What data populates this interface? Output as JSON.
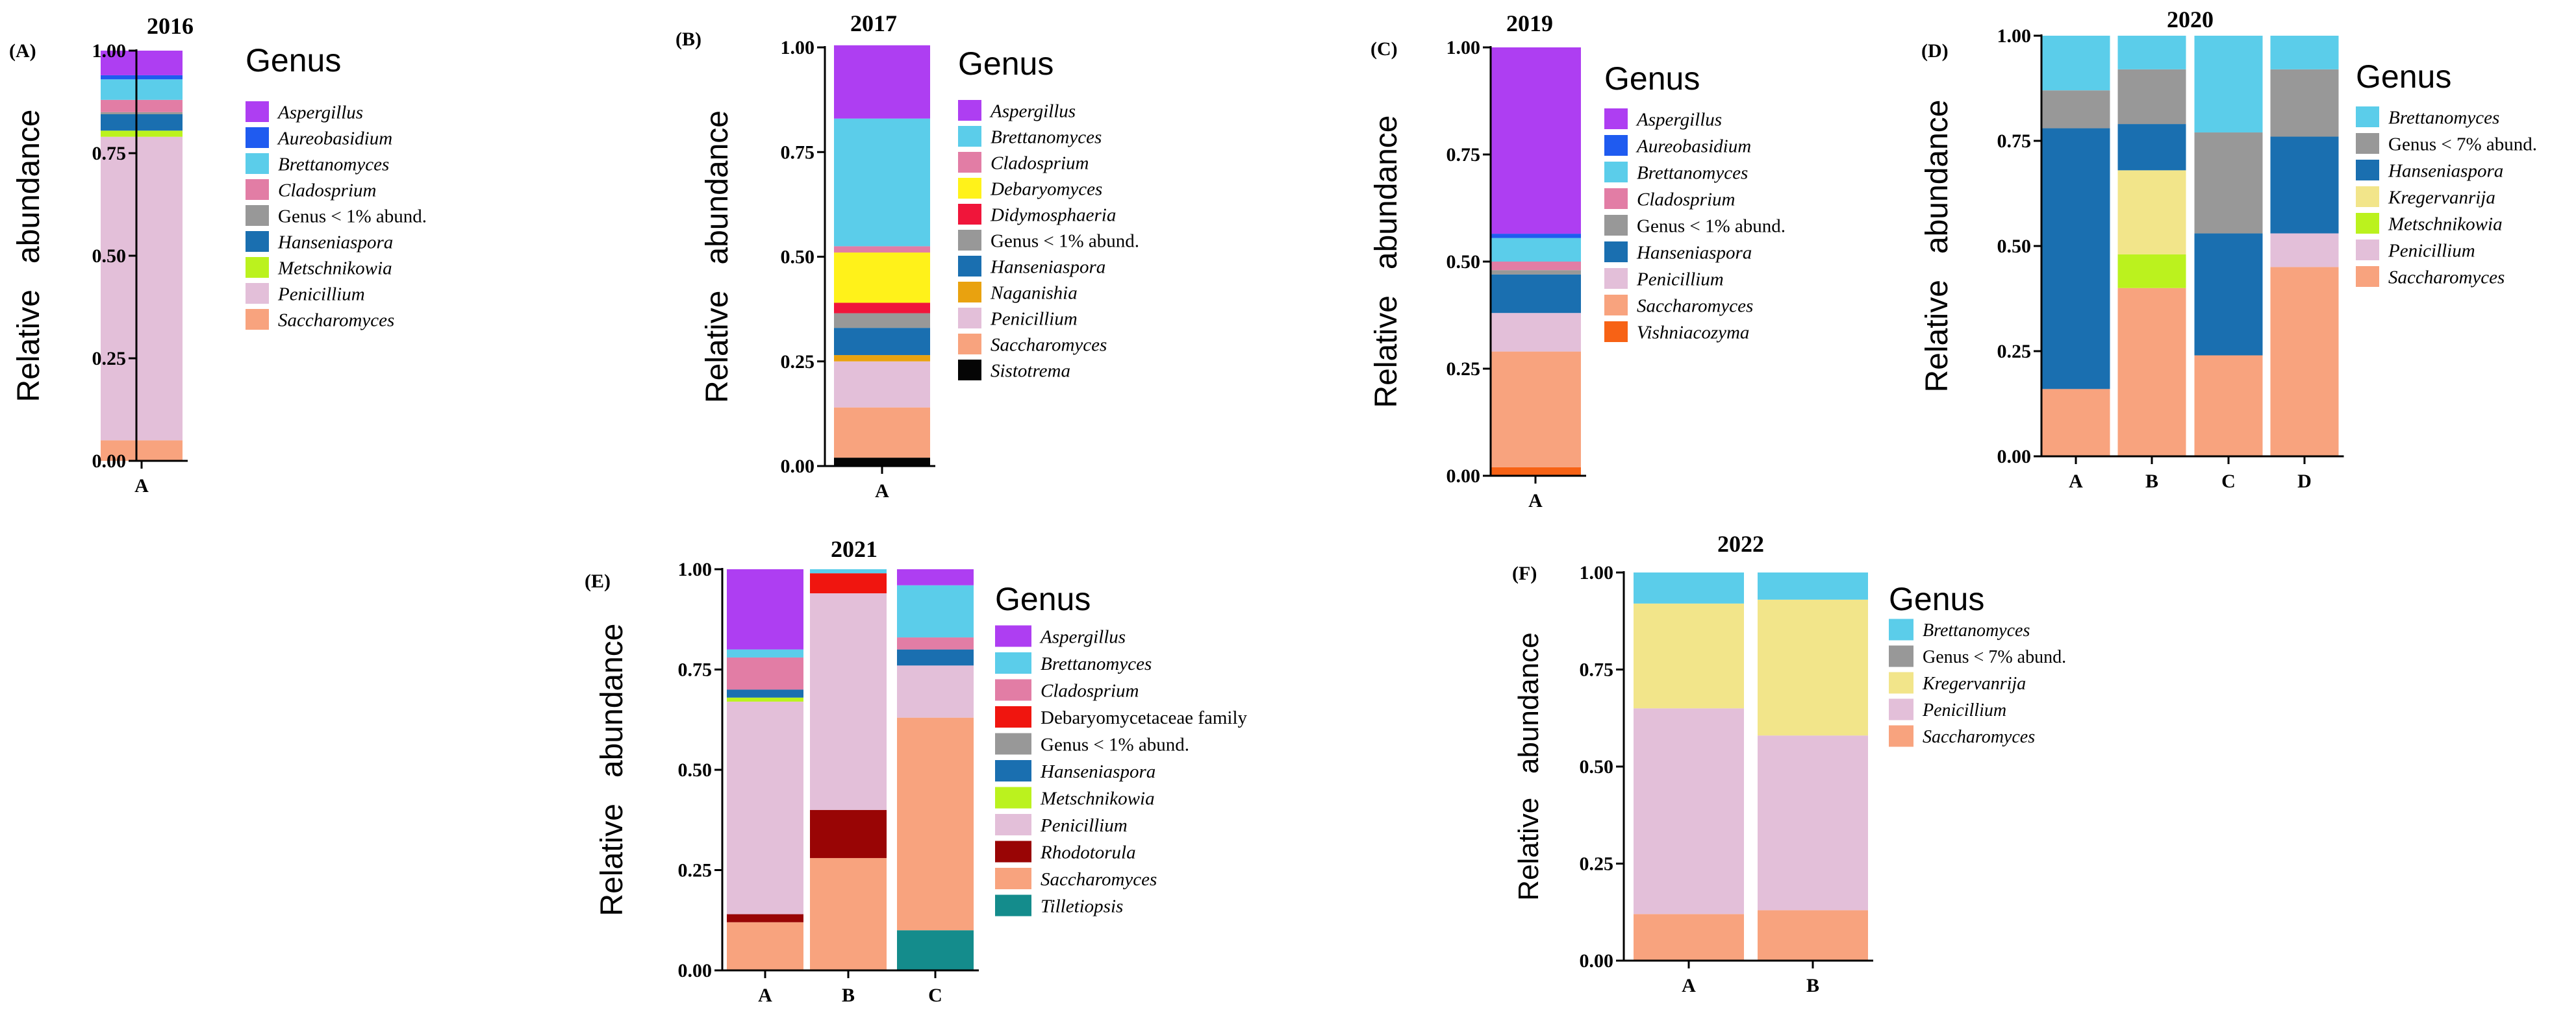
{
  "colors": {
    "Aspergillus": "#AE3EF2",
    "Aureobasidium": "#1F5BF0",
    "Brettanomyces": "#5BCDEA",
    "Cladosprium": "#E27DA5",
    "Debaryomyces": "#FFF21A",
    "Didymosphaeria": "#F0153A",
    "Genus < 1% abund.": "#989898",
    "Genus < 7% abund.": "#989898",
    "Hanseniaspora": "#1A6FB0",
    "Metschnikowia": "#BBF21E",
    "Naganishia": "#E9A20F",
    "Penicillium": "#E3BFD9",
    "Saccharomyces": "#F8A37E",
    "Sistotrema": "#050505",
    "Vishniacozyma": "#F76215",
    "Kregervanrija": "#F2E58A",
    "Debaryomycetaceae family": "#F0150F",
    "Rhodotorula": "#990505",
    "Tilletiopsis": "#148C8C"
  },
  "chart_data": [
    {
      "type": "bar",
      "panel": "(A)",
      "title": "2016",
      "ylabel": "Relative   abundance",
      "ylim": [
        0,
        1
      ],
      "yticks": [
        "0.00",
        "0.25",
        "0.50",
        "0.75",
        "1.00"
      ],
      "legend_title": "Genus",
      "legend_items": [
        {
          "name": "Aspergillus",
          "label": "Aspergillus",
          "italic": true
        },
        {
          "name": "Aureobasidium",
          "label": "Aureobasidium",
          "italic": true
        },
        {
          "name": "Brettanomyces",
          "label": "Brettanomyces",
          "italic": true
        },
        {
          "name": "Cladosprium",
          "label": "Cladosprium",
          "italic": true
        },
        {
          "name": "Genus < 1% abund.",
          "label": "Genus < 1% abund.",
          "italic": false
        },
        {
          "name": "Hanseniaspora",
          "label": "Hanseniaspora",
          "italic": true
        },
        {
          "name": "Metschnikowia",
          "label": "Metschnikowia",
          "italic": true
        },
        {
          "name": "Penicillium",
          "label": "Penicillium",
          "italic": true
        },
        {
          "name": "Saccharomyces",
          "label": "Saccharomyces",
          "italic": true
        }
      ],
      "stack_order": [
        "Saccharomyces",
        "Penicillium",
        "Metschnikowia",
        "Hanseniaspora",
        "Genus < 1% abund.",
        "Cladosprium",
        "Brettanomyces",
        "Aureobasidium",
        "Aspergillus"
      ],
      "categories": [
        "A"
      ],
      "series": [
        {
          "name": "Saccharomyces",
          "values": [
            0.05
          ]
        },
        {
          "name": "Penicillium",
          "values": [
            0.74
          ]
        },
        {
          "name": "Metschnikowia",
          "values": [
            0.015
          ]
        },
        {
          "name": "Hanseniaspora",
          "values": [
            0.04
          ]
        },
        {
          "name": "Genus < 1% abund.",
          "values": [
            0.005
          ]
        },
        {
          "name": "Cladosprium",
          "values": [
            0.03
          ]
        },
        {
          "name": "Brettanomyces",
          "values": [
            0.05
          ]
        },
        {
          "name": "Aureobasidium",
          "values": [
            0.01
          ]
        },
        {
          "name": "Aspergillus",
          "values": [
            0.06
          ]
        }
      ]
    },
    {
      "type": "bar",
      "panel": "(B)",
      "title": "2017",
      "ylabel": "Relative   abundance",
      "ylim": [
        0,
        1
      ],
      "yticks": [
        "0.00",
        "0.25",
        "0.50",
        "0.75",
        "1.00"
      ],
      "legend_title": "Genus",
      "legend_items": [
        {
          "name": "Aspergillus",
          "label": "Aspergillus",
          "italic": true
        },
        {
          "name": "Brettanomyces",
          "label": "Brettanomyces",
          "italic": true
        },
        {
          "name": "Cladosprium",
          "label": "Cladosprium",
          "italic": true
        },
        {
          "name": "Debaryomyces",
          "label": "Debaryomyces",
          "italic": true
        },
        {
          "name": "Didymosphaeria",
          "label": "Didymosphaeria",
          "italic": true
        },
        {
          "name": "Genus < 1% abund.",
          "label": "Genus < 1% abund.",
          "italic": false
        },
        {
          "name": "Hanseniaspora",
          "label": "Hanseniaspora",
          "italic": true
        },
        {
          "name": "Naganishia",
          "label": "Naganishia",
          "italic": true
        },
        {
          "name": "Penicillium",
          "label": "Penicillium",
          "italic": true
        },
        {
          "name": "Saccharomyces",
          "label": "Saccharomyces",
          "italic": true
        },
        {
          "name": "Sistotrema",
          "label": "Sistotrema",
          "italic": true
        }
      ],
      "stack_order": [
        "Sistotrema",
        "Saccharomyces",
        "Penicillium",
        "Naganishia",
        "Hanseniaspora",
        "Genus < 1% abund.",
        "Didymosphaeria",
        "Debaryomyces",
        "Cladosprium",
        "Brettanomyces",
        "Aspergillus"
      ],
      "categories": [
        "A"
      ],
      "series": [
        {
          "name": "Sistotrema",
          "values": [
            0.02
          ]
        },
        {
          "name": "Saccharomyces",
          "values": [
            0.12
          ]
        },
        {
          "name": "Penicillium",
          "values": [
            0.11
          ]
        },
        {
          "name": "Naganishia",
          "values": [
            0.015
          ]
        },
        {
          "name": "Hanseniaspora",
          "values": [
            0.065
          ]
        },
        {
          "name": "Genus < 1% abund.",
          "values": [
            0.035
          ]
        },
        {
          "name": "Didymosphaeria",
          "values": [
            0.025
          ]
        },
        {
          "name": "Debaryomyces",
          "values": [
            0.12
          ]
        },
        {
          "name": "Cladosprium",
          "values": [
            0.015
          ]
        },
        {
          "name": "Brettanomyces",
          "values": [
            0.305
          ]
        },
        {
          "name": "Aspergillus",
          "values": [
            0.175
          ]
        }
      ]
    },
    {
      "type": "bar",
      "panel": "(C)",
      "title": "2019",
      "ylabel": "Relative   abundance",
      "ylim": [
        0,
        1
      ],
      "yticks": [
        "0.00",
        "0.25",
        "0.50",
        "0.75",
        "1.00"
      ],
      "legend_title": "Genus",
      "legend_items": [
        {
          "name": "Aspergillus",
          "label": "Aspergillus",
          "italic": true
        },
        {
          "name": "Aureobasidium",
          "label": "Aureobasidium",
          "italic": true
        },
        {
          "name": "Brettanomyces",
          "label": "Brettanomyces",
          "italic": true
        },
        {
          "name": "Cladosprium",
          "label": "Cladosprium",
          "italic": true
        },
        {
          "name": "Genus < 1% abund.",
          "label": "Genus < 1% abund.",
          "italic": false
        },
        {
          "name": "Hanseniaspora",
          "label": "Hanseniaspora",
          "italic": true
        },
        {
          "name": "Penicillium",
          "label": "Penicillium",
          "italic": true
        },
        {
          "name": "Saccharomyces",
          "label": "Saccharomyces",
          "italic": true
        },
        {
          "name": "Vishniacozyma",
          "label": "Vishniacozyma",
          "italic": true
        }
      ],
      "stack_order": [
        "Vishniacozyma",
        "Saccharomyces",
        "Penicillium",
        "Hanseniaspora",
        "Genus < 1% abund.",
        "Cladosprium",
        "Brettanomyces",
        "Aureobasidium",
        "Aspergillus"
      ],
      "categories": [
        "A"
      ],
      "series": [
        {
          "name": "Vishniacozyma",
          "values": [
            0.02
          ]
        },
        {
          "name": "Saccharomyces",
          "values": [
            0.27
          ]
        },
        {
          "name": "Penicillium",
          "values": [
            0.09
          ]
        },
        {
          "name": "Hanseniaspora",
          "values": [
            0.09
          ]
        },
        {
          "name": "Genus < 1% abund.",
          "values": [
            0.01
          ]
        },
        {
          "name": "Cladosprium",
          "values": [
            0.02
          ]
        },
        {
          "name": "Brettanomyces",
          "values": [
            0.055
          ]
        },
        {
          "name": "Aureobasidium",
          "values": [
            0.01
          ]
        },
        {
          "name": "Aspergillus",
          "values": [
            0.435
          ]
        }
      ]
    },
    {
      "type": "bar",
      "panel": "(D)",
      "title": "2020",
      "ylabel": "Relative   abundance",
      "ylim": [
        0,
        1
      ],
      "yticks": [
        "0.00",
        "0.25",
        "0.50",
        "0.75",
        "1.00"
      ],
      "legend_title": "Genus",
      "legend_items": [
        {
          "name": "Brettanomyces",
          "label": "Brettanomyces",
          "italic": true
        },
        {
          "name": "Genus < 7% abund.",
          "label": "Genus < 7% abund.",
          "italic": false
        },
        {
          "name": "Hanseniaspora",
          "label": "Hanseniaspora",
          "italic": true
        },
        {
          "name": "Kregervanrija",
          "label": "Kregervanrija",
          "italic": true
        },
        {
          "name": "Metschnikowia",
          "label": "Metschnikowia",
          "italic": true
        },
        {
          "name": "Penicillium",
          "label": "Penicillium",
          "italic": true
        },
        {
          "name": "Saccharomyces",
          "label": "Saccharomyces",
          "italic": true
        }
      ],
      "stack_order": [
        "Saccharomyces",
        "Penicillium",
        "Metschnikowia",
        "Kregervanrija",
        "Hanseniaspora",
        "Genus < 7% abund.",
        "Brettanomyces"
      ],
      "categories": [
        "A",
        "B",
        "C",
        "D"
      ],
      "series": [
        {
          "name": "Saccharomyces",
          "values": [
            0.16,
            0.4,
            0.24,
            0.45
          ]
        },
        {
          "name": "Penicillium",
          "values": [
            0.0,
            0.0,
            0.0,
            0.08
          ]
        },
        {
          "name": "Metschnikowia",
          "values": [
            0.0,
            0.08,
            0.0,
            0.0
          ]
        },
        {
          "name": "Kregervanrija",
          "values": [
            0.0,
            0.2,
            0.0,
            0.0
          ]
        },
        {
          "name": "Hanseniaspora",
          "values": [
            0.62,
            0.11,
            0.29,
            0.23
          ]
        },
        {
          "name": "Genus < 7% abund.",
          "values": [
            0.09,
            0.13,
            0.24,
            0.16
          ]
        },
        {
          "name": "Brettanomyces",
          "values": [
            0.13,
            0.08,
            0.23,
            0.08
          ]
        }
      ]
    },
    {
      "type": "bar",
      "panel": "(E)",
      "title": "2021",
      "ylabel": "Relative   abundance",
      "ylim": [
        0,
        1
      ],
      "yticks": [
        "0.00",
        "0.25",
        "0.50",
        "0.75",
        "1.00"
      ],
      "legend_title": "Genus",
      "legend_items": [
        {
          "name": "Aspergillus",
          "label": "Aspergillus",
          "italic": true
        },
        {
          "name": "Brettanomyces",
          "label": "Brettanomyces",
          "italic": true
        },
        {
          "name": "Cladosprium",
          "label": "Cladosprium",
          "italic": true
        },
        {
          "name": "Debaryomycetaceae family",
          "label": "Debaryomycetaceae family",
          "italic": false
        },
        {
          "name": "Genus < 1% abund.",
          "label": "Genus < 1% abund.",
          "italic": false
        },
        {
          "name": "Hanseniaspora",
          "label": "Hanseniaspora",
          "italic": true
        },
        {
          "name": "Metschnikowia",
          "label": "Metschnikowia",
          "italic": true
        },
        {
          "name": "Penicillium",
          "label": "Penicillium",
          "italic": true
        },
        {
          "name": "Rhodotorula",
          "label": "Rhodotorula",
          "italic": true
        },
        {
          "name": "Saccharomyces",
          "label": "Saccharomyces",
          "italic": true
        },
        {
          "name": "Tilletiopsis",
          "label": "Tilletiopsis",
          "italic": true
        }
      ],
      "stack_order": [
        "Tilletiopsis",
        "Saccharomyces",
        "Rhodotorula",
        "Penicillium",
        "Metschnikowia",
        "Hanseniaspora",
        "Genus < 1% abund.",
        "Debaryomycetaceae family",
        "Cladosprium",
        "Brettanomyces",
        "Aspergillus"
      ],
      "categories": [
        "A",
        "B",
        "C"
      ],
      "series": [
        {
          "name": "Tilletiopsis",
          "values": [
            0.0,
            0.0,
            0.1
          ]
        },
        {
          "name": "Saccharomyces",
          "values": [
            0.12,
            0.28,
            0.53
          ]
        },
        {
          "name": "Rhodotorula",
          "values": [
            0.02,
            0.12,
            0.0
          ]
        },
        {
          "name": "Penicillium",
          "values": [
            0.53,
            0.54,
            0.13
          ]
        },
        {
          "name": "Metschnikowia",
          "values": [
            0.01,
            0.0,
            0.0
          ]
        },
        {
          "name": "Hanseniaspora",
          "values": [
            0.02,
            0.0,
            0.04
          ]
        },
        {
          "name": "Genus < 1% abund.",
          "values": [
            0.0,
            0.0,
            0.0
          ]
        },
        {
          "name": "Debaryomycetaceae family",
          "values": [
            0.0,
            0.05,
            0.0
          ]
        },
        {
          "name": "Cladosprium",
          "values": [
            0.08,
            0.0,
            0.03
          ]
        },
        {
          "name": "Brettanomyces",
          "values": [
            0.02,
            0.01,
            0.13
          ]
        },
        {
          "name": "Aspergillus",
          "values": [
            0.2,
            0.0,
            0.04
          ]
        }
      ]
    },
    {
      "type": "bar",
      "panel": "(F)",
      "title": "2022",
      "ylabel": "Relative   abundance",
      "ylim": [
        0,
        1
      ],
      "yticks": [
        "0.00",
        "0.25",
        "0.50",
        "0.75",
        "1.00"
      ],
      "legend_title": "Genus",
      "legend_items": [
        {
          "name": "Brettanomyces",
          "label": "Brettanomyces",
          "italic": true
        },
        {
          "name": "Genus < 7% abund.",
          "label": "Genus < 7% abund.",
          "italic": false
        },
        {
          "name": "Kregervanrija",
          "label": "Kregervanrija",
          "italic": true
        },
        {
          "name": "Penicillium",
          "label": "Penicillium",
          "italic": true
        },
        {
          "name": "Saccharomyces",
          "label": "Saccharomyces",
          "italic": true
        }
      ],
      "stack_order": [
        "Saccharomyces",
        "Penicillium",
        "Kregervanrija",
        "Genus < 7% abund.",
        "Brettanomyces"
      ],
      "categories": [
        "A",
        "B"
      ],
      "series": [
        {
          "name": "Saccharomyces",
          "values": [
            0.12,
            0.13
          ]
        },
        {
          "name": "Penicillium",
          "values": [
            0.53,
            0.45
          ]
        },
        {
          "name": "Kregervanrija",
          "values": [
            0.27,
            0.35
          ]
        },
        {
          "name": "Genus < 7% abund.",
          "values": [
            0.0,
            0.0
          ]
        },
        {
          "name": "Brettanomyces",
          "values": [
            0.08,
            0.07
          ]
        }
      ]
    }
  ]
}
